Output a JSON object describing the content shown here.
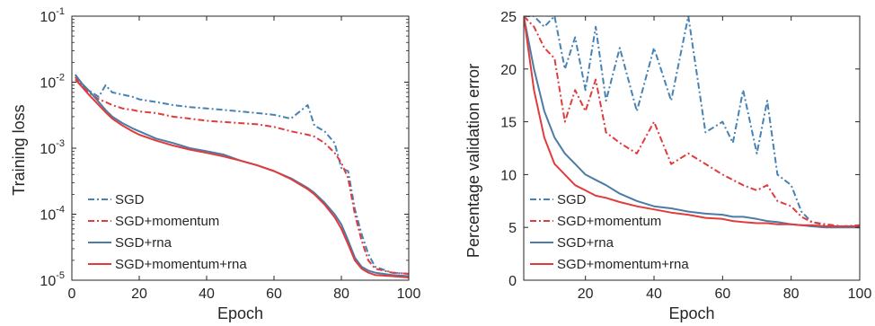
{
  "chart_data": [
    {
      "type": "line",
      "xlabel": "Epoch",
      "ylabel": "Training loss",
      "yscale": "log",
      "xlim": [
        0,
        100
      ],
      "ylim": [
        1e-05,
        0.1
      ],
      "xticks": [
        "0",
        "20",
        "40",
        "60",
        "80",
        "100"
      ],
      "yticks": [
        {
          "value": 1e-05,
          "base": "10",
          "exp": "-5"
        },
        {
          "value": 0.0001,
          "base": "10",
          "exp": "-4"
        },
        {
          "value": 0.001,
          "base": "10",
          "exp": "-3"
        },
        {
          "value": 0.01,
          "base": "10",
          "exp": "-2"
        },
        {
          "value": 0.1,
          "base": "10",
          "exp": "-1"
        }
      ],
      "grid": false,
      "legend_position": "bottom-left",
      "x": [
        1,
        3,
        5,
        8,
        10,
        12,
        15,
        18,
        20,
        25,
        30,
        35,
        40,
        45,
        50,
        55,
        60,
        65,
        70,
        72,
        75,
        78,
        80,
        82,
        84,
        86,
        88,
        90,
        95,
        100
      ],
      "series": [
        {
          "name": "SGD",
          "color": "#4682B4",
          "dash": "7,3,2,3",
          "values": [
            0.013,
            0.009,
            0.0075,
            0.006,
            0.009,
            0.007,
            0.0065,
            0.006,
            0.0055,
            0.005,
            0.0045,
            0.0042,
            0.004,
            0.0038,
            0.0036,
            0.0034,
            0.0032,
            0.0028,
            0.0045,
            0.0022,
            0.0018,
            0.0012,
            0.0005,
            0.00045,
            0.00012,
            5e-05,
            2.5e-05,
            1.6e-05,
            1.3e-05,
            1.25e-05
          ]
        },
        {
          "name": "SGD+momentum",
          "color": "#E03C3C",
          "dash": "7,3,2,3",
          "values": [
            0.012,
            0.0085,
            0.007,
            0.0055,
            0.005,
            0.0045,
            0.004,
            0.0038,
            0.0036,
            0.0034,
            0.003,
            0.0028,
            0.0026,
            0.0025,
            0.0024,
            0.0023,
            0.0021,
            0.0018,
            0.0016,
            0.0015,
            0.0012,
            0.00085,
            0.0006,
            0.00035,
            0.0001,
            4e-05,
            2e-05,
            1.5e-05,
            1.3e-05,
            1.25e-05
          ]
        },
        {
          "name": "SGD+rna",
          "color": "#4C7BA6",
          "dash": "",
          "values": [
            0.013,
            0.0095,
            0.0075,
            0.005,
            0.0038,
            0.003,
            0.0024,
            0.002,
            0.0018,
            0.0014,
            0.0012,
            0.001,
            0.0009,
            0.0008,
            0.00065,
            0.00055,
            0.00045,
            0.00035,
            0.00025,
            0.00021,
            0.00015,
            0.0001,
            7e-05,
            4e-05,
            2.2e-05,
            1.6e-05,
            1.4e-05,
            1.3e-05,
            1.2e-05,
            1.15e-05
          ]
        },
        {
          "name": "SGD+momentum+rna",
          "color": "#E03C3C",
          "dash": "",
          "values": [
            0.011,
            0.0085,
            0.0065,
            0.0045,
            0.0035,
            0.0028,
            0.0022,
            0.0018,
            0.0016,
            0.0013,
            0.0011,
            0.00095,
            0.00085,
            0.00075,
            0.00065,
            0.00055,
            0.00045,
            0.00034,
            0.00024,
            0.0002,
            0.00014,
            9e-05,
            6e-05,
            3.5e-05,
            2e-05,
            1.5e-05,
            1.3e-05,
            1.2e-05,
            1.15e-05,
            1.1e-05
          ]
        }
      ]
    },
    {
      "type": "line",
      "xlabel": "Epoch",
      "ylabel": "Percentage validation error",
      "yscale": "linear",
      "xlim": [
        2,
        100
      ],
      "ylim": [
        0,
        25
      ],
      "xticks": [
        "20",
        "40",
        "60",
        "80",
        "100"
      ],
      "yticks": [
        "0",
        "5",
        "10",
        "15",
        "20",
        "25"
      ],
      "grid": false,
      "legend_position": "bottom-left",
      "x": [
        2,
        5,
        8,
        11,
        14,
        17,
        20,
        23,
        26,
        30,
        35,
        40,
        45,
        50,
        55,
        60,
        63,
        66,
        70,
        73,
        76,
        80,
        83,
        86,
        90,
        95,
        100
      ],
      "series": [
        {
          "name": "SGD",
          "color": "#4682B4",
          "dash": "7,3,2,3",
          "values": [
            25,
            25,
            24,
            25,
            20,
            23,
            18,
            24,
            17,
            22,
            16,
            22,
            17,
            25,
            14,
            15,
            13,
            18,
            12,
            17,
            10,
            9,
            6.5,
            5.5,
            5.2,
            5.1,
            5
          ]
        },
        {
          "name": "SGD+momentum",
          "color": "#E03C3C",
          "dash": "7,3,2,3",
          "values": [
            25,
            24,
            22,
            21,
            15,
            18,
            16,
            19,
            14,
            13,
            12,
            15,
            11,
            12,
            11,
            10,
            9.5,
            9.0,
            8.5,
            9.0,
            7.5,
            7.0,
            6.0,
            5.5,
            5.3,
            5.1,
            5.2
          ]
        },
        {
          "name": "SGD+rna",
          "color": "#4C7BA6",
          "dash": "",
          "values": [
            25,
            20,
            16,
            13.5,
            12.0,
            11.0,
            10.0,
            9.5,
            9.0,
            8.2,
            7.5,
            7.0,
            6.8,
            6.5,
            6.3,
            6.2,
            6.0,
            6.0,
            5.8,
            5.6,
            5.5,
            5.3,
            5.2,
            5.1,
            5.0,
            5.0,
            5.0
          ]
        },
        {
          "name": "SGD+momentum+rna",
          "color": "#E03C3C",
          "dash": "",
          "values": [
            25,
            18,
            13.5,
            11.0,
            10.0,
            9.0,
            8.5,
            8.0,
            7.8,
            7.4,
            7.0,
            6.7,
            6.4,
            6.2,
            5.9,
            5.8,
            5.6,
            5.5,
            5.4,
            5.4,
            5.3,
            5.3,
            5.2,
            5.2,
            5.1,
            5.1,
            5.1
          ]
        }
      ]
    }
  ]
}
